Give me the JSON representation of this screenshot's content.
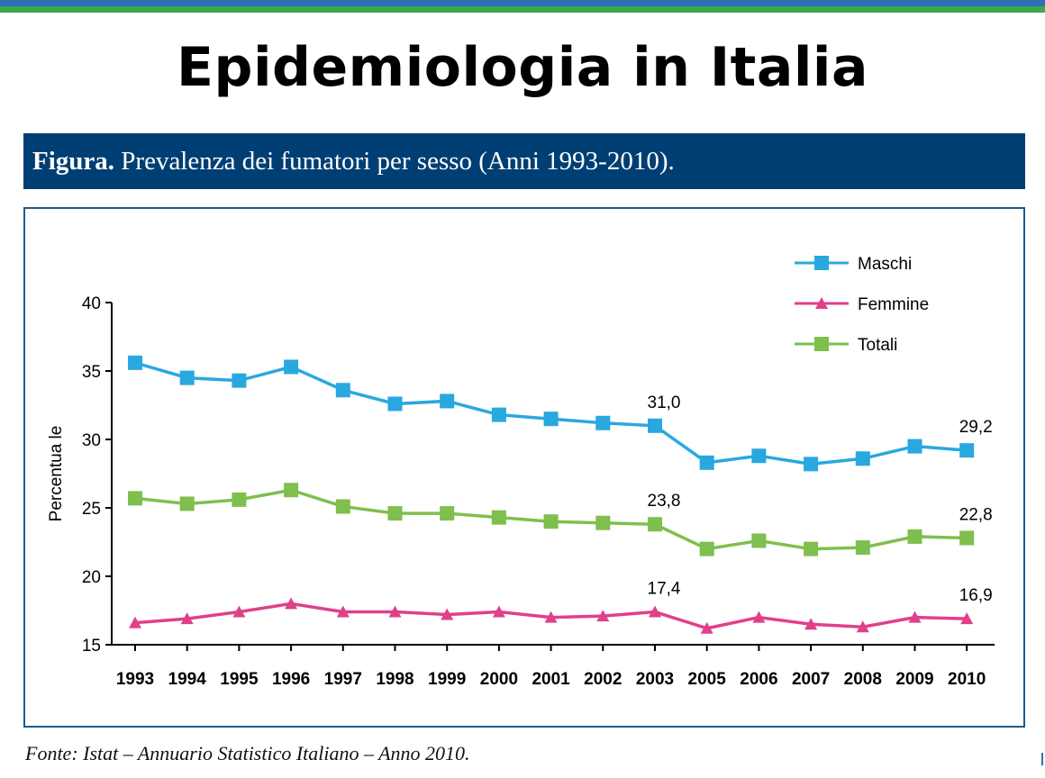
{
  "slide": {
    "title": "Epidemiologia in Italia"
  },
  "figure": {
    "prefix": "Figura.",
    "caption": "Prevalenza dei fumatori per sesso (Anni 1993-2010).",
    "source": "Fonte: Istat – Annuario Statistico Italiano – Anno 2010."
  },
  "colors": {
    "maschi": "#29a8e0",
    "femmine": "#e0408a",
    "totali": "#7fbf4d",
    "header_bg": "#003f73",
    "frame": "#1f5a8a"
  },
  "chart_data": {
    "type": "line",
    "title": "",
    "xlabel": "",
    "ylabel": "Percentua le",
    "ylim": [
      15,
      40
    ],
    "yticks": [
      "15",
      "20",
      "25",
      "30",
      "35",
      "40"
    ],
    "categories": [
      "1993",
      "1994",
      "1995",
      "1996",
      "1997",
      "1998",
      "1999",
      "2000",
      "2001",
      "2002",
      "2003",
      "2005",
      "2006",
      "2007",
      "2008",
      "2009",
      "2010"
    ],
    "legend_position": "top-right",
    "grid": false,
    "series": [
      {
        "name": "Maschi",
        "marker": "square",
        "color": "#29a8e0",
        "values": [
          35.6,
          34.5,
          34.3,
          35.3,
          33.6,
          32.6,
          32.8,
          31.8,
          31.5,
          31.2,
          31.0,
          28.3,
          28.8,
          28.2,
          28.6,
          29.5,
          29.2
        ]
      },
      {
        "name": "Femmine",
        "marker": "triangle",
        "color": "#e0408a",
        "values": [
          16.6,
          16.9,
          17.4,
          18.0,
          17.4,
          17.4,
          17.2,
          17.4,
          17.0,
          17.1,
          17.4,
          16.2,
          17.0,
          16.5,
          16.3,
          17.0,
          16.9
        ]
      },
      {
        "name": "Totali",
        "marker": "square",
        "color": "#7fbf4d",
        "values": [
          25.7,
          25.3,
          25.6,
          26.3,
          25.1,
          24.6,
          24.6,
          24.3,
          24.0,
          23.9,
          23.8,
          22.0,
          22.6,
          22.0,
          22.1,
          22.9,
          22.8
        ]
      }
    ],
    "annotations": [
      {
        "series": "Maschi",
        "category": "2003",
        "text": "31,0"
      },
      {
        "series": "Maschi",
        "category": "2010",
        "text": "29,2"
      },
      {
        "series": "Totali",
        "category": "2003",
        "text": "23,8"
      },
      {
        "series": "Totali",
        "category": "2010",
        "text": "22,8"
      },
      {
        "series": "Femmine",
        "category": "2003",
        "text": "17,4"
      },
      {
        "series": "Femmine",
        "category": "2010",
        "text": "16,9"
      }
    ]
  }
}
